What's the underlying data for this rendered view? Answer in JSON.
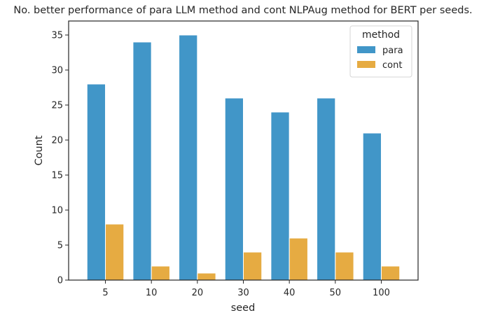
{
  "chart_data": {
    "type": "bar",
    "title": "No. better performance of para LLM method and cont NLPAug method for BERT per seeds.",
    "xlabel": "seed",
    "ylabel": "Count",
    "categories": [
      "5",
      "10",
      "20",
      "30",
      "40",
      "50",
      "100"
    ],
    "series": [
      {
        "name": "para",
        "values": [
          28,
          34,
          35,
          26,
          24,
          26,
          21
        ],
        "color": "#4196c8"
      },
      {
        "name": "cont",
        "values": [
          8,
          2,
          1,
          4,
          6,
          4,
          2
        ],
        "color": "#e6ab42"
      }
    ],
    "ylim": [
      0,
      37
    ],
    "yticks": [
      "0",
      "5",
      "10",
      "15",
      "20",
      "25",
      "30",
      "35"
    ],
    "legend": {
      "title": "method",
      "placement": "top-right"
    },
    "grid": false
  }
}
